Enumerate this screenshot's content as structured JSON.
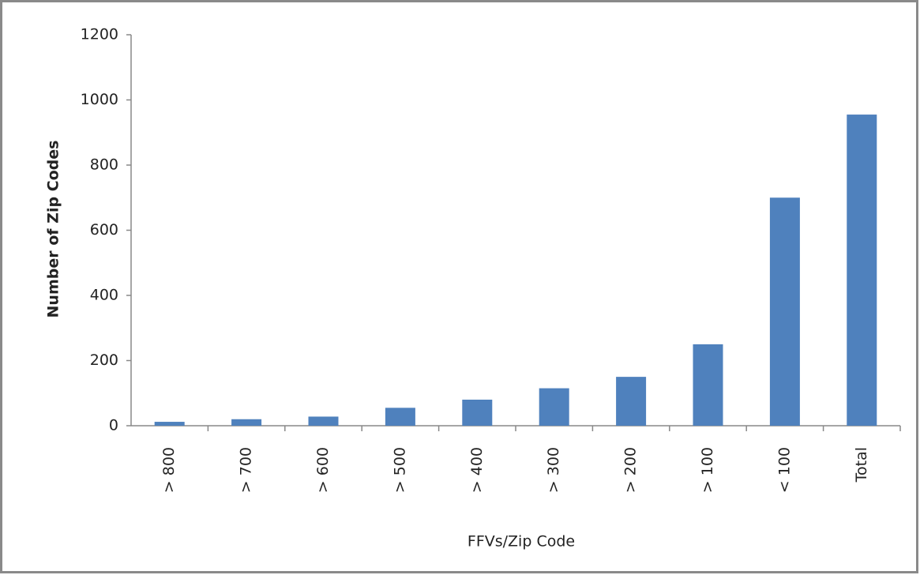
{
  "chart_data": {
    "type": "bar",
    "xlabel": "FFVs/Zip Code",
    "ylabel": "Number of Zip Codes",
    "categories": [
      "> 800",
      "> 700",
      "> 600",
      "> 500",
      "> 400",
      "> 300",
      "> 200",
      "> 100",
      "< 100",
      "Total"
    ],
    "values": [
      12,
      20,
      28,
      55,
      80,
      115,
      150,
      250,
      700,
      955
    ],
    "color": "#4f81bd",
    "ylim": [
      0,
      1200
    ],
    "yticks": [
      0,
      200,
      400,
      600,
      800,
      1000,
      1200
    ],
    "grid": false
  }
}
